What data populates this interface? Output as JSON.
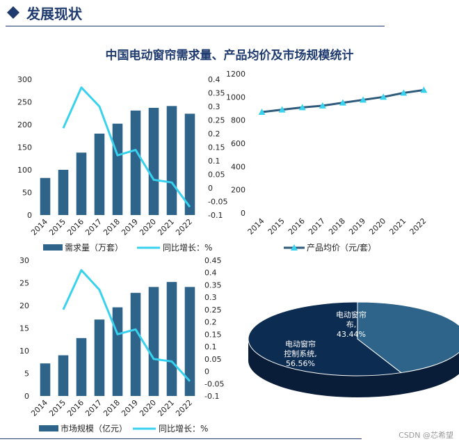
{
  "header": {
    "title": "发展现状",
    "main_title": "中国电动窗帘需求量、产品均价及市场规模统计",
    "watermark": "CSDN @芯希望"
  },
  "colors": {
    "bar": "#2e6489",
    "line_growth": "#38d2ef",
    "price_line": "#2e5a7c",
    "price_marker": "#38d2ef",
    "pie_a": "#0c2c52",
    "pie_b": "#2e6489",
    "pie_side": "#0a1d38",
    "header": "#1f3b6f"
  },
  "chart_data": [
    {
      "id": "demand",
      "type": "bar",
      "categories": [
        "2014",
        "2015",
        "2016",
        "2017",
        "2018",
        "2019",
        "2020",
        "2021",
        "2022"
      ],
      "series": [
        {
          "name": "需求量（万套）",
          "type": "bar",
          "axis": "left",
          "values": [
            82,
            100,
            138,
            180,
            202,
            231,
            237,
            241,
            224
          ]
        },
        {
          "name": "同比增长：%",
          "type": "line",
          "axis": "right",
          "values": [
            null,
            0.22,
            0.37,
            0.3,
            0.12,
            0.14,
            0.03,
            0.02,
            -0.07
          ]
        }
      ],
      "y_left": {
        "min": 0,
        "max": 300,
        "ticks": [
          "0",
          "50",
          "100",
          "150",
          "200",
          "250",
          "300"
        ]
      },
      "y_right": {
        "min": -0.1,
        "max": 0.4,
        "ticks": [
          "-0.1",
          "-0.05",
          "0",
          "0.05",
          "0.1",
          "0.15",
          "0.2",
          "0.25",
          "0.3",
          "0.35",
          "0.4"
        ]
      }
    },
    {
      "id": "price",
      "type": "line",
      "categories": [
        "2014",
        "2015",
        "2016",
        "2017",
        "2018",
        "2019",
        "2020",
        "2021",
        "2022"
      ],
      "series": [
        {
          "name": "产品均价（元/套）",
          "type": "line",
          "axis": "left",
          "values": [
            870,
            890,
            910,
            925,
            950,
            975,
            1000,
            1035,
            1060
          ]
        }
      ],
      "y_left": {
        "min": 0,
        "max": 1200,
        "ticks": [
          "0",
          "200",
          "400",
          "600",
          "800",
          "1000",
          "1200"
        ]
      }
    },
    {
      "id": "market",
      "type": "bar",
      "categories": [
        "2014",
        "2015",
        "2016",
        "2017",
        "2018",
        "2019",
        "2020",
        "2021",
        "2022"
      ],
      "series": [
        {
          "name": "市场规模（亿元）",
          "type": "bar",
          "axis": "left",
          "values": [
            7.2,
            9.0,
            12.8,
            16.9,
            19.6,
            22.8,
            24.1,
            25.2,
            24.1
          ]
        },
        {
          "name": "同比增长：%",
          "type": "line",
          "axis": "right",
          "values": [
            null,
            0.25,
            0.41,
            0.33,
            0.15,
            0.17,
            0.05,
            0.04,
            -0.04
          ]
        }
      ],
      "y_left": {
        "min": 0,
        "max": 30,
        "ticks": [
          "0",
          "5",
          "10",
          "15",
          "20",
          "25",
          "30"
        ]
      },
      "y_right": {
        "min": -0.1,
        "max": 0.45,
        "ticks": [
          "-0.1",
          "-0.05",
          "0",
          "0.05",
          "0.1",
          "0.15",
          "0.2",
          "0.25",
          "0.3",
          "0.35",
          "0.4",
          "0.45"
        ]
      }
    },
    {
      "id": "share",
      "type": "pie",
      "slices": [
        {
          "name": "电动窗帘控制系统",
          "value": 56.56,
          "label_lines": [
            "电动窗帘",
            "控制系统,",
            "56.56%"
          ]
        },
        {
          "name": "电动窗帘布",
          "value": 43.44,
          "label_lines": [
            "电动窗帘",
            "布,",
            "43.44%"
          ]
        }
      ]
    }
  ]
}
